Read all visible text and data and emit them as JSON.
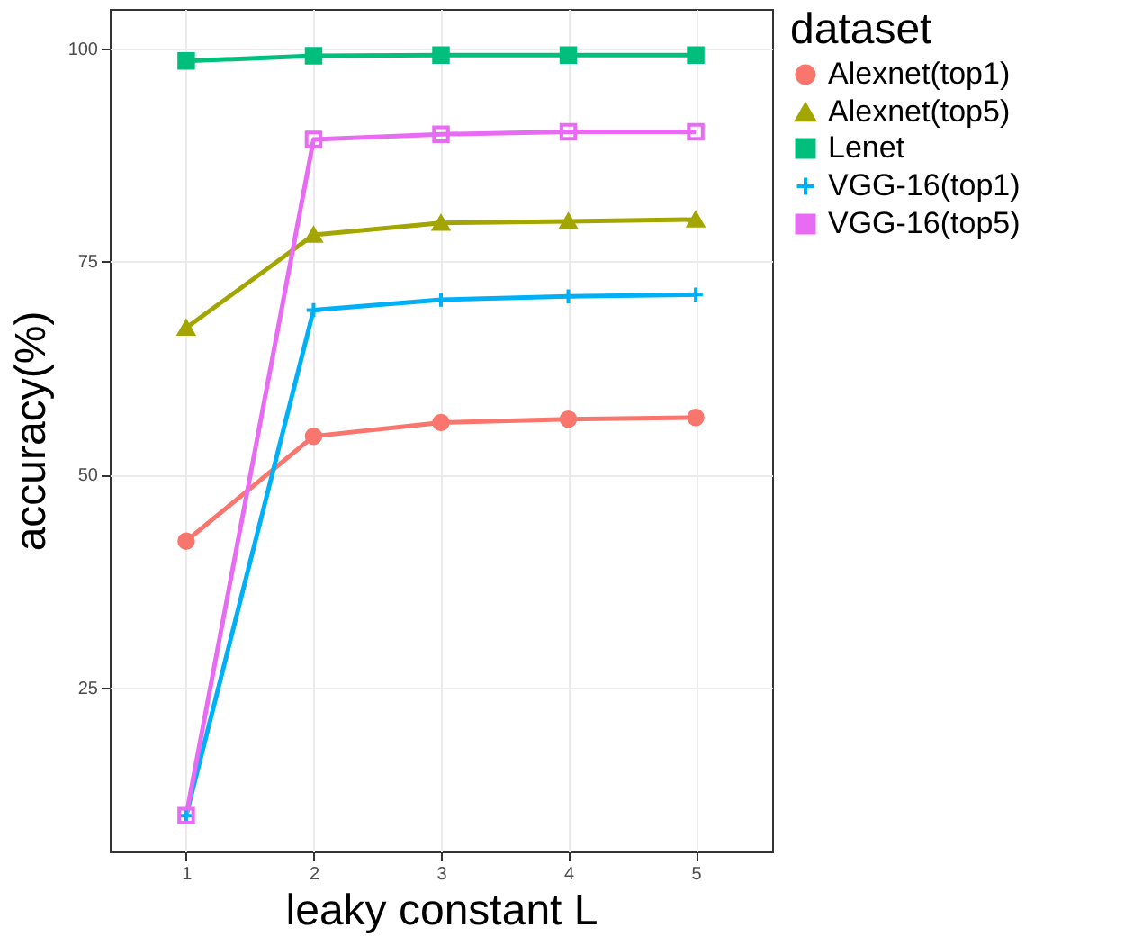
{
  "chart_data": {
    "type": "line",
    "xlabel": "leaky constant L",
    "ylabel": "accuracy(%)",
    "legend_title": "dataset",
    "x": [
      1,
      2,
      3,
      4,
      5
    ],
    "xlim": [
      0.4,
      5.6
    ],
    "xticks": [
      1,
      2,
      3,
      4,
      5
    ],
    "ylim": [
      5.8,
      104.6
    ],
    "yticks": [
      25,
      50,
      75,
      100
    ],
    "grid": true,
    "legend": "right",
    "series": [
      {
        "name": "Alexnet(top1)",
        "color": "#f8766d",
        "marker": "circle",
        "values": [
          42.2,
          54.5,
          56.1,
          56.5,
          56.7
        ]
      },
      {
        "name": "Alexnet(top5)",
        "color": "#a3a500",
        "marker": "triangle",
        "values": [
          67.2,
          78.1,
          79.5,
          79.7,
          79.9
        ]
      },
      {
        "name": "Lenet",
        "color": "#00bf7d",
        "marker": "square",
        "values": [
          98.5,
          99.1,
          99.2,
          99.2,
          99.2
        ]
      },
      {
        "name": "VGG-16(top1)",
        "color": "#00b0f6",
        "marker": "cross",
        "values": [
          10.0,
          69.3,
          70.5,
          70.9,
          71.1
        ]
      },
      {
        "name": "VGG-16(top5)",
        "color": "#e76bf3",
        "marker": "square",
        "values": [
          10.0,
          89.3,
          89.9,
          90.2,
          90.2
        ]
      }
    ]
  }
}
